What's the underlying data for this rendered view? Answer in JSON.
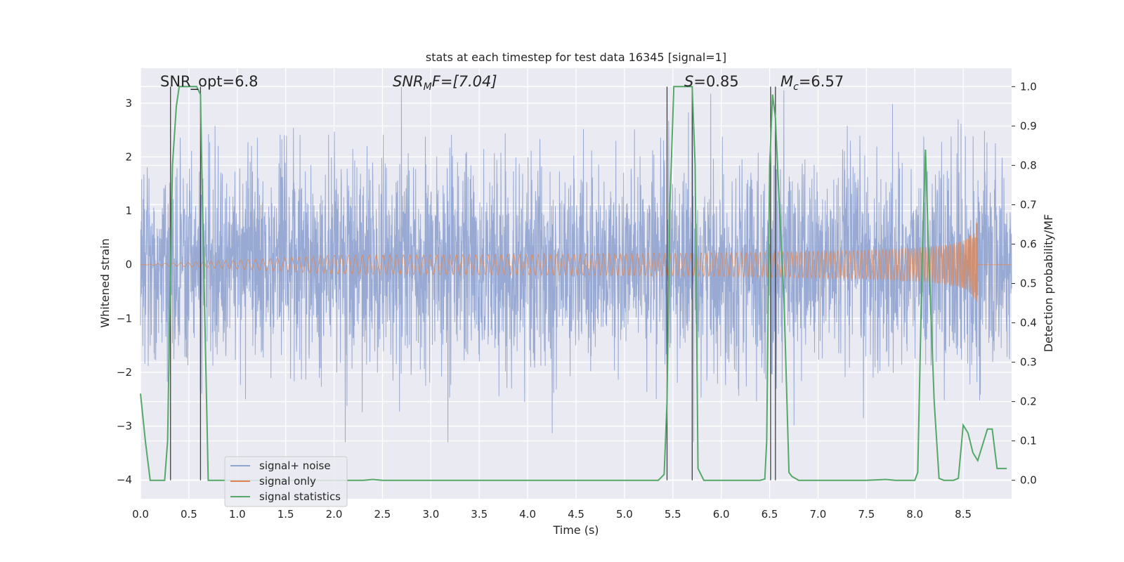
{
  "chart_data": {
    "type": "line",
    "title": "stats at each timestep for test data 16345 [signal=1]",
    "xlabel": "Time (s)",
    "ylabel_left": "Whitened strain",
    "ylabel_right": "Detection probability/MF",
    "xlim": [
      0.0,
      9.0
    ],
    "ylim_left": [
      -4.35,
      3.65
    ],
    "ylim_right": [
      -0.047,
      1.047
    ],
    "xticks": [
      "0.0",
      "0.5",
      "1.0",
      "1.5",
      "2.0",
      "2.5",
      "3.0",
      "3.5",
      "4.0",
      "4.5",
      "5.0",
      "5.5",
      "6.0",
      "6.5",
      "7.0",
      "7.5",
      "8.0",
      "8.5"
    ],
    "yticks_left": [
      "3",
      "2",
      "1",
      "0",
      "−1",
      "−2",
      "−3",
      "−4"
    ],
    "yticks_right": [
      "1.0",
      "0.9",
      "0.8",
      "0.7",
      "0.6",
      "0.5",
      "0.4",
      "0.3",
      "0.2",
      "0.1",
      "0.0"
    ],
    "annotations": {
      "snr_opt": "SNR_opt=6.8",
      "snr_mf_sym": "SNR",
      "snr_mf_sub": "M",
      "snr_mf_rest": "F=[7.04]",
      "s_sym": "S",
      "s_rest": "=0.85",
      "mc_sym": "M",
      "mc_sub": "c",
      "mc_rest": "=6.57"
    },
    "vertical_lines_x": [
      0.31,
      0.62,
      5.44,
      5.7,
      6.51,
      6.56
    ],
    "colors": {
      "noise": "#8fa3cf",
      "signal": "#dd8452",
      "stats": "#55a868",
      "background": "#eaeaf2",
      "grid": "#ffffff",
      "vline": "#404040"
    },
    "series": [
      {
        "name": "signal+ noise",
        "axis": "left",
        "description": "whitened strain noise, approx gaussian sigma 1, peaks about +-3.3",
        "noise_std": 0.95,
        "duration": 9.0
      },
      {
        "name": "signal only",
        "axis": "left",
        "description": "chirp signal growing in amplitude, merger near t=8.65",
        "merger_time": 8.65,
        "peak_amplitude": 0.85
      },
      {
        "name": "signal statistics",
        "axis": "right",
        "x": [
          0.0,
          0.05,
          0.1,
          0.15,
          0.2,
          0.25,
          0.28,
          0.3,
          0.33,
          0.37,
          0.4,
          0.45,
          0.5,
          0.55,
          0.58,
          0.62,
          0.64,
          0.7,
          0.75,
          1.0,
          1.5,
          2.0,
          2.3,
          2.4,
          2.5,
          3.0,
          3.5,
          4.0,
          4.5,
          5.0,
          5.35,
          5.41,
          5.44,
          5.47,
          5.51,
          5.55,
          5.6,
          5.65,
          5.7,
          5.73,
          5.76,
          5.82,
          5.9,
          6.0,
          6.4,
          6.45,
          6.47,
          6.5,
          6.53,
          6.56,
          6.6,
          6.65,
          6.7,
          6.73,
          6.8,
          7.0,
          7.5,
          7.7,
          7.8,
          8.0,
          8.03,
          8.08,
          8.11,
          8.14,
          8.2,
          8.25,
          8.3,
          8.35,
          8.4,
          8.45,
          8.5,
          8.55,
          8.6,
          8.65,
          8.7,
          8.75,
          8.8,
          8.85,
          8.95
        ],
        "values": [
          0.22,
          0.1,
          0.0,
          0.0,
          0.0,
          0.0,
          0.1,
          0.4,
          0.8,
          0.95,
          1.0,
          1.0,
          1.0,
          1.0,
          1.0,
          0.98,
          0.7,
          0.0,
          0.0,
          0.0,
          0.0,
          0.0,
          0.0,
          0.002,
          0.0,
          0.0,
          0.0,
          0.0,
          0.0,
          0.0,
          0.0,
          0.015,
          0.2,
          0.7,
          1.0,
          1.0,
          1.0,
          1.0,
          1.0,
          0.8,
          0.03,
          0.0,
          0.0,
          0.0,
          0.0,
          0.003,
          0.1,
          0.8,
          0.98,
          0.92,
          0.7,
          0.45,
          0.02,
          0.01,
          0.0,
          0.0,
          0.0,
          0.002,
          0.0,
          0.0,
          0.02,
          0.6,
          0.84,
          0.6,
          0.2,
          0.005,
          0.0,
          0.0,
          0.0,
          0.005,
          0.14,
          0.12,
          0.07,
          0.05,
          0.09,
          0.13,
          0.13,
          0.03,
          0.03
        ]
      }
    ],
    "legend": {
      "position": "lower-left",
      "entries": [
        "signal+ noise",
        "signal only",
        "signal statistics"
      ]
    }
  }
}
